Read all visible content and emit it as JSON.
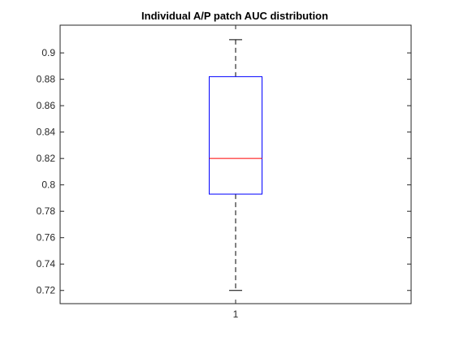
{
  "chart_data": {
    "type": "box",
    "title": "Individual A/P patch AUC distribution",
    "xlabel": "",
    "ylabel": "",
    "ylim": [
      0.71,
      0.921
    ],
    "yticks": [
      0.72,
      0.74,
      0.76,
      0.78,
      0.8,
      0.82,
      0.84,
      0.86,
      0.88,
      0.9
    ],
    "ytick_labels": [
      "0.72",
      "0.74",
      "0.76",
      "0.78",
      "0.8",
      "0.82",
      "0.84",
      "0.86",
      "0.88",
      "0.9"
    ],
    "categories": [
      "1"
    ],
    "boxes": [
      {
        "category": "1",
        "whisker_low": 0.72,
        "q1": 0.793,
        "median": 0.82,
        "q3": 0.882,
        "whisker_high": 0.91
      }
    ],
    "grid": false,
    "colors": {
      "box": "#0000ff",
      "median": "#ff0000",
      "whisker": "#000000",
      "axes": "#262626"
    }
  }
}
